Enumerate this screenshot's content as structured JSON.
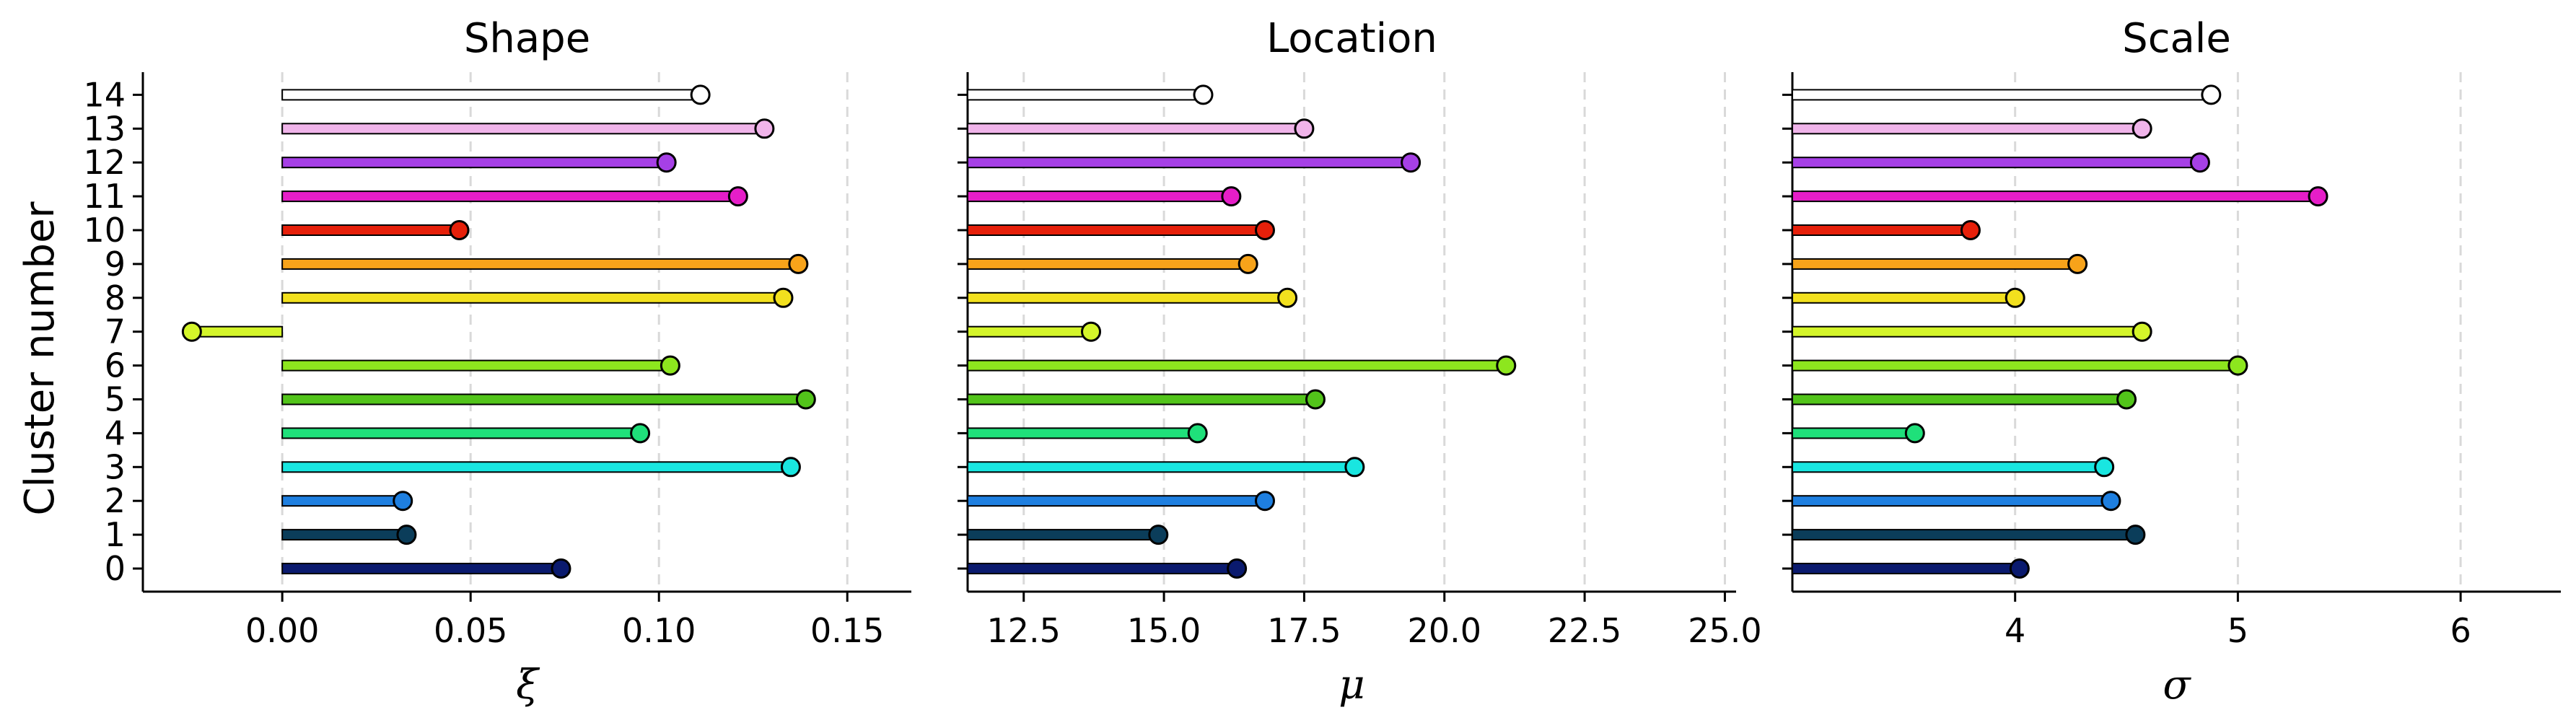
{
  "chart_data": {
    "type": "lollipop",
    "ylabel": "Cluster number",
    "clusters": [
      0,
      1,
      2,
      3,
      4,
      5,
      6,
      7,
      8,
      9,
      10,
      11,
      12,
      13,
      14
    ],
    "colors": [
      "#0a1a6e",
      "#0b3d5a",
      "#1e7fe0",
      "#19e6e0",
      "#1fe07a",
      "#52c41a",
      "#8de61e",
      "#d4f52a",
      "#f2e01e",
      "#f7a31a",
      "#e6200a",
      "#e61ec8",
      "#a640e6",
      "#f0b4ea",
      "#ffffff"
    ],
    "grid": "vertical-dashed",
    "panels": [
      {
        "title": "Shape",
        "xlabel": "ξ",
        "xlim": [
          -0.037,
          0.167
        ],
        "ticks": [
          0.0,
          0.05,
          0.1,
          0.15
        ],
        "tick_labels": [
          "0.00",
          "0.05",
          "0.10",
          "0.15"
        ],
        "baseline": 0.0,
        "values": [
          0.074,
          0.033,
          0.032,
          0.135,
          0.095,
          0.139,
          0.103,
          -0.024,
          0.133,
          0.137,
          0.047,
          0.121,
          0.102,
          0.128,
          0.111
        ]
      },
      {
        "title": "Location",
        "xlabel": "μ",
        "xlim": [
          11.5,
          25.2
        ],
        "ticks": [
          12.5,
          15.0,
          17.5,
          20.0,
          22.5,
          25.0
        ],
        "tick_labels": [
          "12.5",
          "15.0",
          "17.5",
          "20.0",
          "22.5",
          "25.0"
        ],
        "baseline": 11.5,
        "values": [
          16.3,
          14.9,
          16.8,
          18.4,
          15.6,
          17.7,
          21.1,
          13.7,
          17.2,
          16.5,
          16.8,
          16.2,
          19.4,
          17.5,
          15.7
        ]
      },
      {
        "title": "Scale",
        "xlabel": "σ",
        "xlim": [
          3.0,
          6.45
        ],
        "ticks": [
          4,
          5,
          6
        ],
        "tick_labels": [
          "4",
          "5",
          "6"
        ],
        "baseline": 3.0,
        "values": [
          4.02,
          4.54,
          4.43,
          4.4,
          3.55,
          4.5,
          5.0,
          4.57,
          4.0,
          4.28,
          3.8,
          5.36,
          4.83,
          4.57,
          4.88
        ]
      }
    ]
  }
}
